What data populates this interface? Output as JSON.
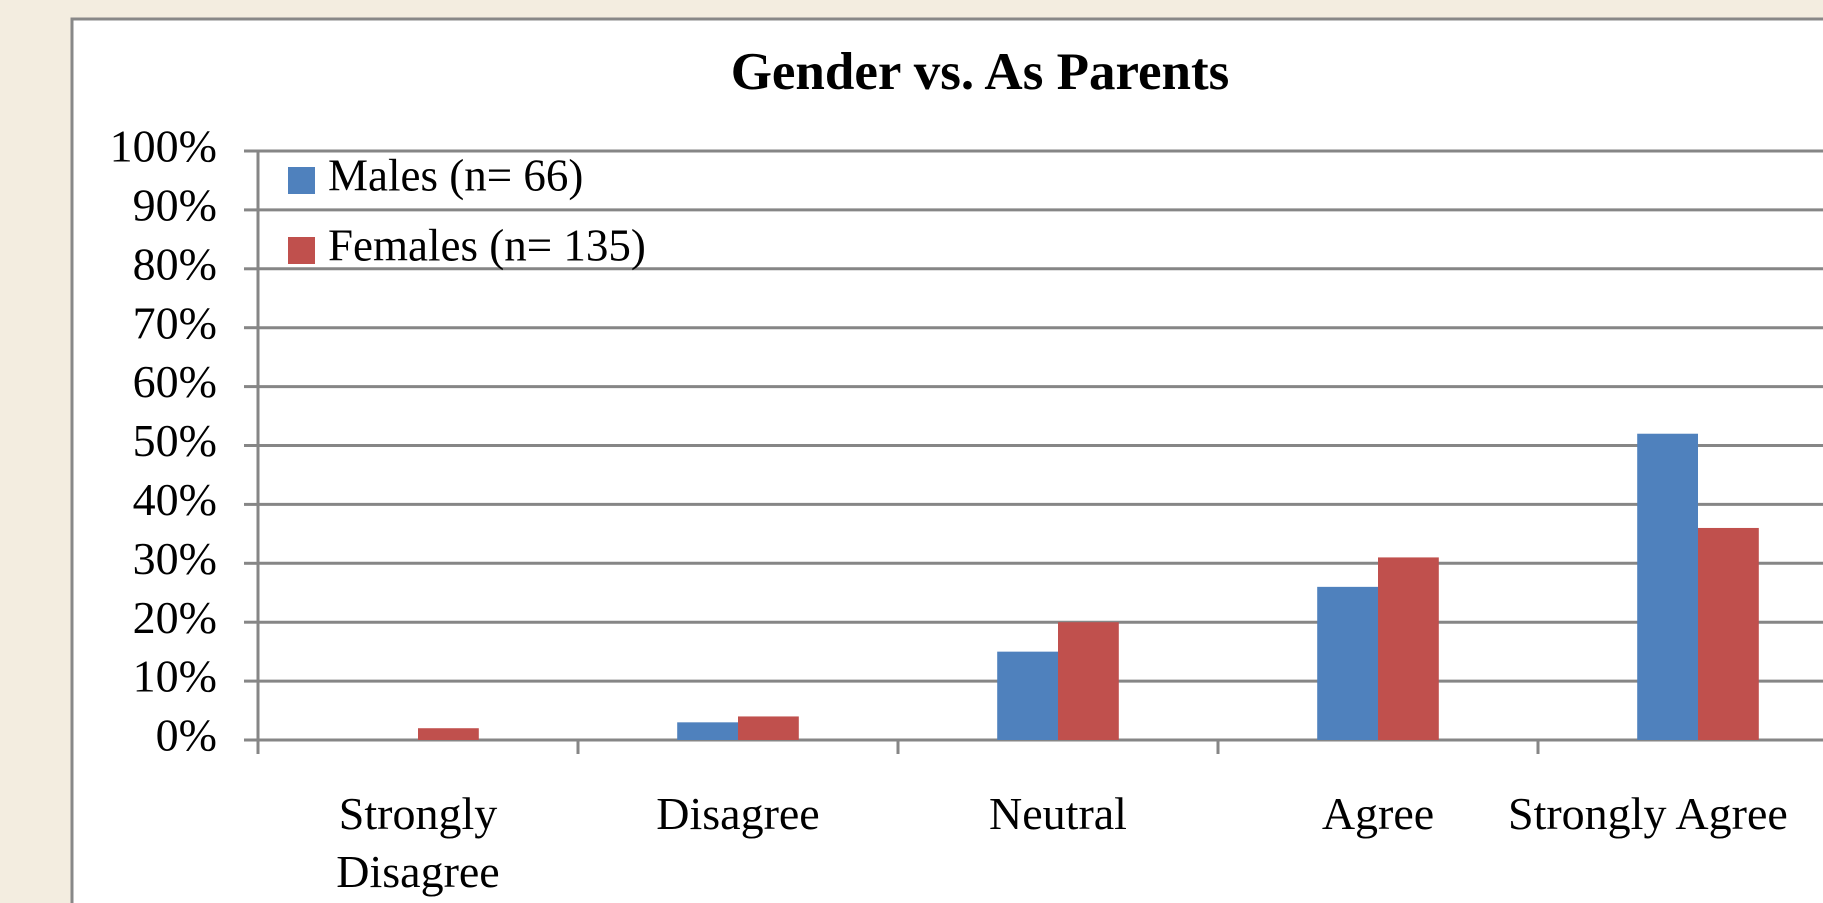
{
  "chart_data": {
    "type": "bar",
    "title": "Gender vs. As Parents",
    "categories": [
      "Strongly\nDisagree",
      "Disagree",
      "Neutral",
      "Agree",
      "Strongly Agree"
    ],
    "series": [
      {
        "name": "Males (n= 66)",
        "color": "#4f81bd",
        "values": [
          0,
          3,
          15,
          26,
          52
        ]
      },
      {
        "name": "Females (n= 135)",
        "color": "#c0504d",
        "values": [
          2,
          4,
          20,
          31,
          36
        ]
      }
    ],
    "ylim": [
      0,
      100
    ],
    "yticks": [
      {
        "value": 0,
        "label": "0%"
      },
      {
        "value": 10,
        "label": "10%"
      },
      {
        "value": 20,
        "label": "20%"
      },
      {
        "value": 30,
        "label": "30%"
      },
      {
        "value": 40,
        "label": "40%"
      },
      {
        "value": 50,
        "label": "50%"
      },
      {
        "value": 60,
        "label": "60%"
      },
      {
        "value": 70,
        "label": "70%"
      },
      {
        "value": 80,
        "label": "80%"
      },
      {
        "value": 90,
        "label": "90%"
      },
      {
        "value": 100,
        "label": "100%"
      }
    ],
    "grid": true,
    "legend": "top-left"
  }
}
